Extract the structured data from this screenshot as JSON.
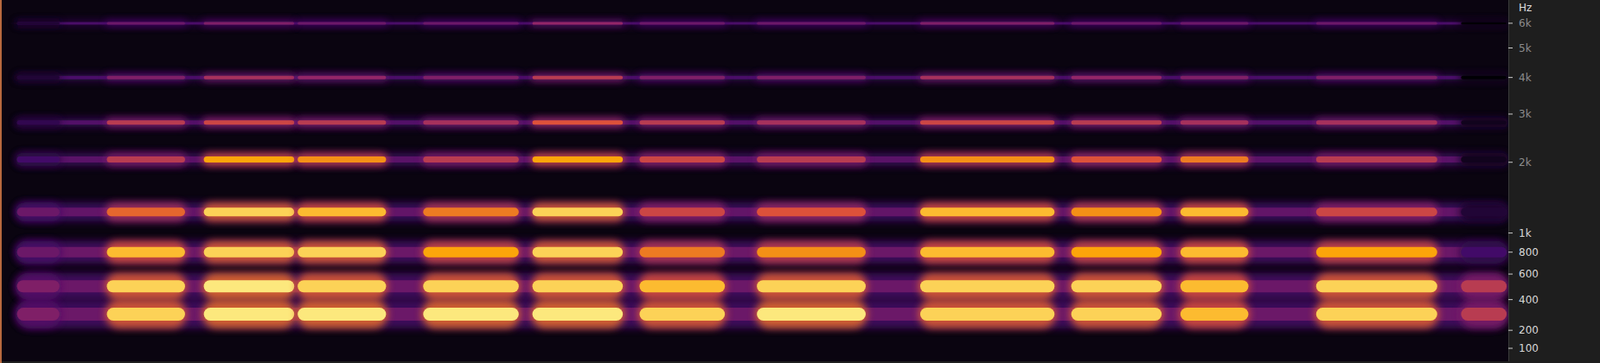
{
  "chart_data": {
    "type": "spectrogram",
    "y_label": "Hz",
    "bands": [
      300,
      500,
      800,
      1250,
      2050,
      2800,
      4000,
      6000
    ],
    "notes": [
      {
        "start": 15,
        "end": 1478,
        "levels": [
          0.3,
          0.3,
          0.3,
          0.28,
          0.26,
          0.24,
          0.22,
          0.22
        ]
      },
      {
        "start": 15,
        "end": 60,
        "levels": [
          0.35,
          0.35,
          0.3,
          0.3,
          0.2,
          0.15,
          0.1,
          0.1
        ]
      },
      {
        "start": 103,
        "end": 183,
        "levels": [
          0.9,
          0.9,
          0.85,
          0.65,
          0.5,
          0.5,
          0.35,
          0.3
        ]
      },
      {
        "start": 198,
        "end": 290,
        "levels": [
          0.95,
          0.95,
          0.9,
          0.9,
          0.8,
          0.55,
          0.45,
          0.35
        ]
      },
      {
        "start": 290,
        "end": 380,
        "levels": [
          0.95,
          0.9,
          0.9,
          0.85,
          0.75,
          0.5,
          0.4,
          0.3
        ]
      },
      {
        "start": 413,
        "end": 510,
        "levels": [
          0.95,
          0.9,
          0.8,
          0.7,
          0.5,
          0.45,
          0.35,
          0.3
        ]
      },
      {
        "start": 520,
        "end": 612,
        "levels": [
          0.95,
          0.9,
          0.9,
          0.9,
          0.8,
          0.6,
          0.5,
          0.4
        ]
      },
      {
        "start": 625,
        "end": 712,
        "levels": [
          0.9,
          0.85,
          0.7,
          0.55,
          0.55,
          0.5,
          0.35,
          0.3
        ]
      },
      {
        "start": 740,
        "end": 850,
        "levels": [
          0.95,
          0.9,
          0.75,
          0.6,
          0.5,
          0.45,
          0.35,
          0.3
        ]
      },
      {
        "start": 900,
        "end": 1035,
        "levels": [
          0.9,
          0.9,
          0.85,
          0.85,
          0.75,
          0.55,
          0.45,
          0.35
        ]
      },
      {
        "start": 1048,
        "end": 1140,
        "levels": [
          0.9,
          0.9,
          0.8,
          0.75,
          0.6,
          0.5,
          0.4,
          0.3
        ]
      },
      {
        "start": 1155,
        "end": 1225,
        "levels": [
          0.85,
          0.85,
          0.85,
          0.85,
          0.7,
          0.45,
          0.35,
          0.3
        ]
      },
      {
        "start": 1288,
        "end": 1410,
        "levels": [
          0.9,
          0.9,
          0.8,
          0.55,
          0.5,
          0.45,
          0.35,
          0.3
        ]
      },
      {
        "start": 1430,
        "end": 1478,
        "levels": [
          0.5,
          0.5,
          0.2,
          0.1,
          0.05,
          0.05,
          0,
          0
        ]
      }
    ],
    "xlim": [
      0,
      1478
    ],
    "ylim": [
      35,
      7100
    ],
    "yticks": [
      100,
      200,
      400,
      600,
      800,
      {
        "value": 1000,
        "label": "1k"
      },
      {
        "value": 2000,
        "label": "2k"
      },
      {
        "value": 3000,
        "label": "3k"
      },
      {
        "value": 4000,
        "label": "4k"
      },
      {
        "value": 5000,
        "label": "5k"
      },
      {
        "value": 6000,
        "label": "6k"
      }
    ],
    "tick_labels": "y",
    "grid": false
  }
}
